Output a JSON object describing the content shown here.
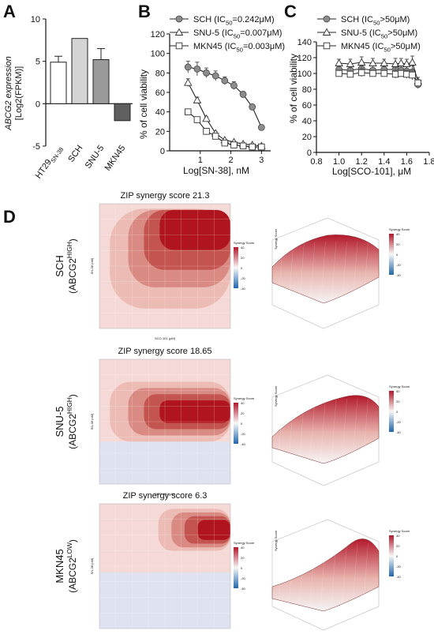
{
  "panels": {
    "A": "A",
    "B": "B",
    "C": "C",
    "D": "D"
  },
  "chart_data": [
    {
      "id": "A",
      "type": "bar",
      "ylabel_line1": "ABCG2 expression",
      "ylabel_line2": "[Log2(FPKM)]",
      "categories": [
        "HT29SN-38",
        "SCH",
        "SNU-5",
        "MKN45"
      ],
      "category_labels": [
        {
          "main": "HT29",
          "sub": "SN-38"
        },
        {
          "main": "SCH",
          "sub": ""
        },
        {
          "main": "SNU-5",
          "sub": ""
        },
        {
          "main": "MKN45",
          "sub": ""
        }
      ],
      "values": [
        4.9,
        7.7,
        5.2,
        -2.0
      ],
      "errors": [
        0.7,
        0,
        1.3,
        0
      ],
      "fills": [
        "#ffffff",
        "#d4d4d4",
        "#9a9a9a",
        "#5f5f5f"
      ],
      "yticks": [
        "10",
        "5",
        "0",
        "-5"
      ],
      "ytick_values": [
        10,
        5,
        0,
        -5
      ],
      "ylim": [
        -5,
        10
      ]
    },
    {
      "id": "B",
      "type": "line",
      "xlabel": "Log[SN-38], nM",
      "ylabel": "% of cell viability",
      "xlim": [
        0,
        3.3
      ],
      "ylim": [
        0,
        120
      ],
      "xticks": [
        "1",
        "2",
        "3"
      ],
      "xtick_values": [
        1,
        2,
        3
      ],
      "yticks": [
        "0",
        "20",
        "40",
        "60",
        "80",
        "100",
        "120"
      ],
      "ytick_values": [
        0,
        20,
        40,
        60,
        80,
        100,
        120
      ],
      "series": [
        {
          "name": "SCH (IC50=0.242μM)",
          "legend_main": "SCH (IC",
          "legend_sub": "50",
          "legend_rest": "=0.242μM)",
          "marker": "circle",
          "x": [
            0.6,
            0.9,
            1.2,
            1.5,
            1.8,
            2.1,
            2.4,
            2.7,
            3.0
          ],
          "y": [
            86,
            84,
            80,
            77,
            72,
            67,
            58,
            45,
            24
          ],
          "err": [
            6,
            7,
            5,
            5,
            4,
            4,
            3,
            3,
            2
          ]
        },
        {
          "name": "SNU-5 (IC50=0.007μM)",
          "legend_main": "SNU-5 (IC",
          "legend_sub": "50",
          "legend_rest": "=0.007μM)",
          "marker": "triangle",
          "x": [
            0.6,
            0.9,
            1.2,
            1.5,
            1.8,
            2.1,
            2.4,
            2.7,
            3.0
          ],
          "y": [
            70,
            52,
            33,
            18,
            11,
            9,
            7,
            6,
            5
          ],
          "err": [
            4,
            3,
            2,
            2,
            1,
            1,
            1,
            1,
            1
          ]
        },
        {
          "name": "MKN45 (IC50=0.003μM)",
          "legend_main": "MKN45 (IC",
          "legend_sub": "50",
          "legend_rest": "=0.003μM)",
          "marker": "square",
          "x": [
            0.6,
            0.9,
            1.2,
            1.5,
            1.8,
            2.1,
            2.4,
            2.7,
            3.0
          ],
          "y": [
            40,
            32,
            20,
            15,
            8,
            6,
            5,
            4,
            4
          ],
          "err": [
            2,
            2,
            2,
            1,
            1,
            1,
            1,
            1,
            1
          ]
        }
      ]
    },
    {
      "id": "C",
      "type": "line",
      "xlabel": "Log[SCO-101], μM",
      "ylabel": "% of cell viability",
      "xlim": [
        0.8,
        1.8
      ],
      "ylim": [
        0,
        140
      ],
      "xticks": [
        "0.8",
        "1.0",
        "1.2",
        "1.4",
        "1.6",
        "1.8"
      ],
      "xtick_values": [
        0.8,
        1.0,
        1.2,
        1.4,
        1.6,
        1.8
      ],
      "yticks": [
        "0",
        "20",
        "40",
        "60",
        "80",
        "100",
        "120",
        "140"
      ],
      "ytick_values": [
        0,
        20,
        40,
        60,
        80,
        100,
        120,
        140
      ],
      "series": [
        {
          "name": "SCH (IC50>50μM)",
          "legend_main": "SCH (IC",
          "legend_sub": "50",
          "legend_rest": ">50μM)",
          "marker": "circle",
          "x": [
            1.0,
            1.1,
            1.2,
            1.3,
            1.4,
            1.5,
            1.55,
            1.6,
            1.65,
            1.7
          ],
          "y": [
            105,
            104,
            106,
            104,
            105,
            105,
            104,
            103,
            102,
            86
          ],
          "err": [
            6,
            5,
            8,
            6,
            5,
            6,
            6,
            7,
            8,
            5
          ]
        },
        {
          "name": "SNU-5 (IC50>50μM)",
          "legend_main": "SNU-5 (IC",
          "legend_sub": "50",
          "legend_rest": ">50μM)",
          "marker": "triangle",
          "x": [
            1.0,
            1.1,
            1.2,
            1.3,
            1.4,
            1.5,
            1.55,
            1.6,
            1.65,
            1.7
          ],
          "y": [
            113,
            112,
            114,
            113,
            113,
            112,
            113,
            112,
            114,
            90
          ],
          "err": [
            5,
            6,
            7,
            6,
            5,
            7,
            6,
            6,
            8,
            5
          ]
        },
        {
          "name": "MKN45 (IC50>50μM)",
          "legend_main": "MKN45 (IC",
          "legend_sub": "50",
          "legend_rest": ">50μM)",
          "marker": "square",
          "x": [
            1.0,
            1.1,
            1.2,
            1.3,
            1.4,
            1.5,
            1.55,
            1.6,
            1.65,
            1.7
          ],
          "y": [
            100,
            99,
            101,
            100,
            100,
            99,
            100,
            99,
            98,
            88
          ],
          "err": [
            4,
            4,
            5,
            4,
            4,
            5,
            4,
            5,
            6,
            4
          ]
        }
      ]
    },
    {
      "id": "D",
      "type": "heatmap",
      "rows": [
        {
          "cell_line": "SCH",
          "profile_main": "(ABCG2",
          "profile_sup": "HIGH",
          "profile_end": ")",
          "title": "ZIP synergy score 21.3"
        },
        {
          "cell_line": "SNU-5",
          "profile_main": "(ABCG2",
          "profile_sup": "HIGH",
          "profile_end": ")",
          "title": "ZIP synergy score 18.65"
        },
        {
          "cell_line": "MKN45",
          "profile_main": "(ABCG2",
          "profile_sup": "LOW",
          "profile_end": ")",
          "title": "ZIP synergy score 6.3"
        }
      ],
      "xlabel": "SCO-101 (μM)",
      "ylabel": "SN-38 (nM)",
      "colorbar_title": "Synergy Score",
      "colorbar_ticks": [
        "40",
        "20",
        "0",
        "-20",
        "-40"
      ],
      "surface_zlabel": "Synergy Score",
      "colors": {
        "high": "#b2182b",
        "mid": "#f7f7f7",
        "low": "#2166ac"
      }
    }
  ]
}
